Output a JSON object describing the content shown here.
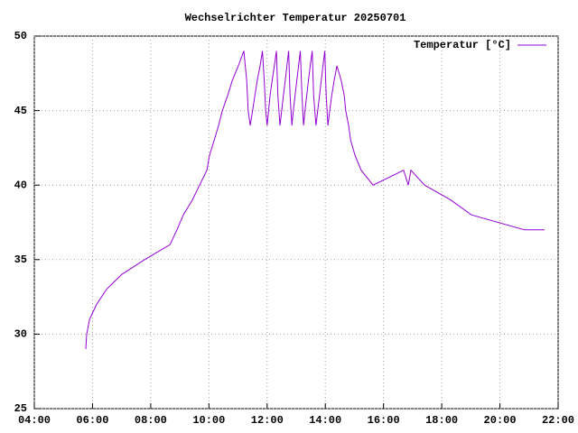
{
  "chart_data": {
    "type": "line",
    "title": "Wechselrichter Temperatur 20250701",
    "x": [
      5.77,
      5.8,
      5.9,
      6.14,
      6.48,
      7.0,
      7.79,
      8.66,
      8.9,
      9.12,
      9.43,
      9.68,
      9.93,
      10.02,
      10.18,
      10.33,
      10.46,
      10.64,
      10.8,
      11.01,
      11.2,
      11.3,
      11.35,
      11.42,
      11.5,
      11.58,
      11.66,
      11.76,
      11.84,
      11.9,
      11.95,
      12.0,
      12.05,
      12.1,
      12.17,
      12.25,
      12.32,
      12.37,
      12.44,
      12.5,
      12.56,
      12.62,
      12.68,
      12.74,
      12.79,
      12.85,
      12.9,
      12.96,
      13.02,
      13.08,
      13.14,
      13.2,
      13.25,
      13.3,
      13.36,
      13.42,
      13.48,
      13.55,
      13.6,
      13.68,
      13.74,
      13.8,
      13.86,
      13.92,
      13.98,
      14.03,
      14.09,
      14.15,
      14.22,
      14.3,
      14.4,
      14.55,
      14.65,
      14.7,
      14.8,
      14.87,
      15.02,
      15.23,
      15.64,
      16.69,
      16.85,
      16.94,
      17.41,
      18.31,
      19.02,
      20.85,
      21.53
    ],
    "series": [
      {
        "name": "Temperatur [°C]",
        "color": "#9400d3",
        "values": [
          29,
          30,
          31,
          32,
          33,
          34,
          35,
          36,
          37,
          38,
          39,
          40,
          41,
          42,
          43,
          44,
          45,
          46,
          47,
          48,
          49,
          47,
          45,
          44,
          45,
          46,
          47,
          48,
          49,
          47,
          45,
          44,
          45,
          46,
          47,
          48,
          49,
          46,
          44,
          45,
          46,
          47,
          48,
          49,
          46,
          44,
          45,
          46,
          47,
          48,
          49,
          46,
          44,
          45,
          46,
          47,
          48,
          49,
          46,
          44,
          45,
          46,
          47,
          48,
          49,
          46,
          44,
          45,
          46,
          47,
          48,
          47,
          46,
          45,
          44,
          43,
          42,
          41,
          40,
          41,
          40,
          41,
          40,
          39,
          38,
          37,
          37
        ]
      }
    ],
    "xlim": [
      4,
      22
    ],
    "xticks": [
      {
        "value": 4,
        "label": "04:00"
      },
      {
        "value": 6,
        "label": "06:00"
      },
      {
        "value": 8,
        "label": "08:00"
      },
      {
        "value": 10,
        "label": "10:00"
      },
      {
        "value": 12,
        "label": "12:00"
      },
      {
        "value": 14,
        "label": "14:00"
      },
      {
        "value": 16,
        "label": "16:00"
      },
      {
        "value": 18,
        "label": "18:00"
      },
      {
        "value": 20,
        "label": "20:00"
      },
      {
        "value": 22,
        "label": "22:00"
      }
    ],
    "ylim": [
      25,
      50
    ],
    "yticks": [
      25,
      30,
      35,
      40,
      45,
      50
    ],
    "grid": true,
    "legend": "top-right"
  }
}
